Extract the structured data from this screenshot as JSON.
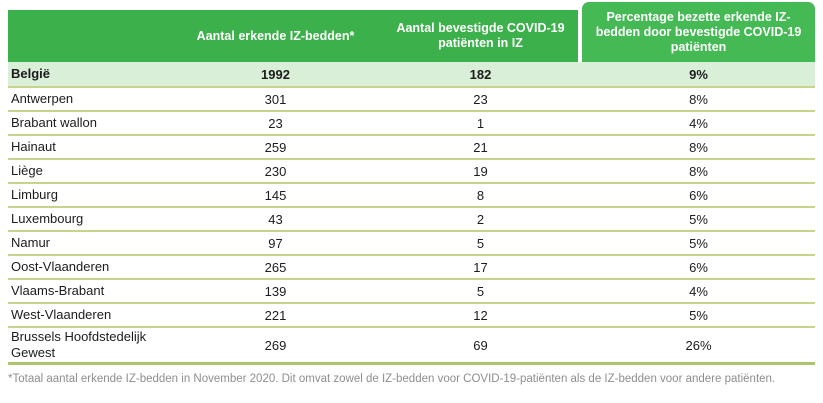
{
  "chart_data": {
    "type": "table",
    "columns": [
      "",
      "Aantal erkende IZ-bedden*",
      "Aantal bevestigde COVID-19 patiënten in IZ",
      "Percentage bezette erkende IZ-bedden door bevestigde COVID-19 patiënten"
    ],
    "rows": [
      [
        "België",
        1992,
        182,
        "9%"
      ],
      [
        "Antwerpen",
        301,
        23,
        "8%"
      ],
      [
        "Brabant wallon",
        23,
        1,
        "4%"
      ],
      [
        "Hainaut",
        259,
        21,
        "8%"
      ],
      [
        "Liège",
        230,
        19,
        "8%"
      ],
      [
        "Limburg",
        145,
        8,
        "6%"
      ],
      [
        "Luxembourg",
        43,
        2,
        "5%"
      ],
      [
        "Namur",
        97,
        5,
        "5%"
      ],
      [
        "Oost-Vlaanderen",
        265,
        17,
        "6%"
      ],
      [
        "Vlaams-Brabant",
        139,
        5,
        "4%"
      ],
      [
        "West-Vlaanderen",
        221,
        12,
        "5%"
      ],
      [
        "Brussels Hoofdstedelijk Gewest",
        269,
        69,
        "26%"
      ]
    ],
    "title": "",
    "legend": null,
    "notes": "First data row (België) is the national total row, highlighted pale green and bold; last row (Brussels Hoofdstedelijk Gewest) wraps onto two lines."
  },
  "footnote": "*Totaal aantal erkende IZ-bedden in November 2020. Dit omvat zowel de IZ-bedden voor COVID-19-patiënten als de IZ-bedden voor andere patiënten.",
  "colors": {
    "header_green": "#3CB04A",
    "header_green_highlight": "#45B954",
    "total_row_bg": "#D9EFD8",
    "row_divider": "#C8D38C",
    "table_bottom_border": "#AFC56B",
    "header_text": "#FFFFFF",
    "body_text": "#1C1C1C",
    "footnote_text": "#8E8E8E"
  }
}
